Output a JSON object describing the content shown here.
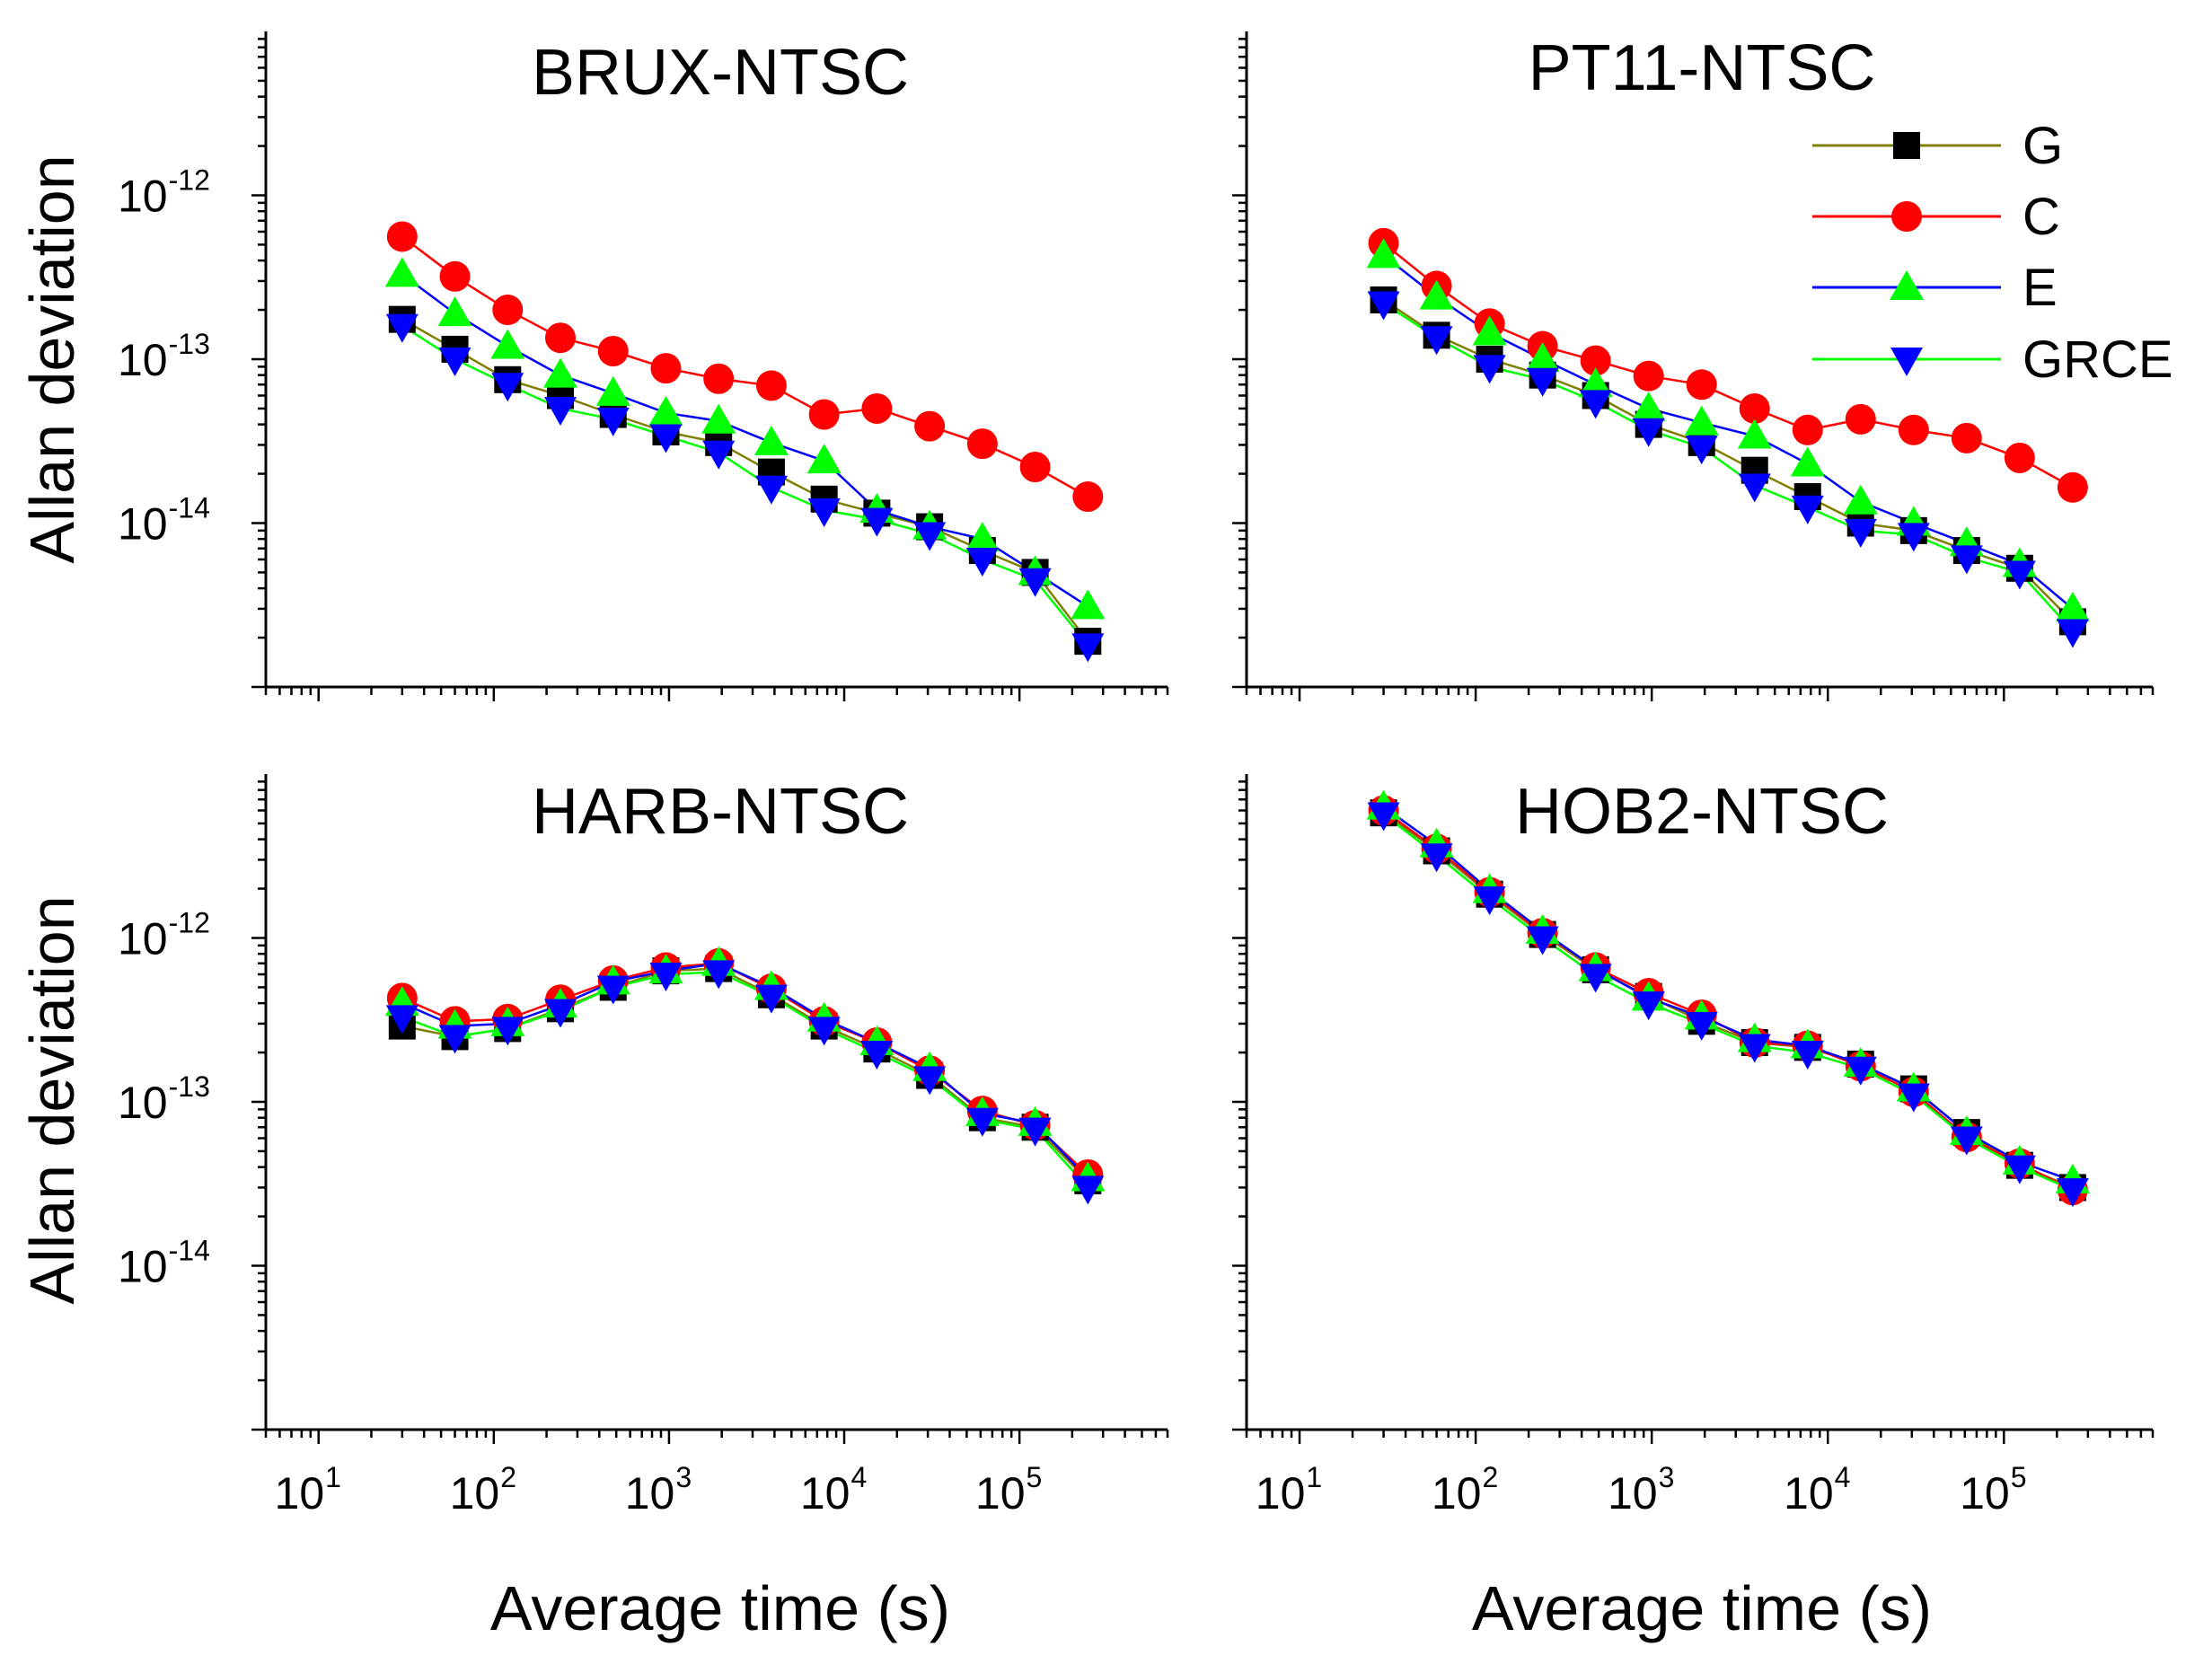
{
  "chart_data": {
    "type": "line",
    "scale": {
      "x": "log",
      "y": "log"
    },
    "xlim": [
      5,
      700000
    ],
    "ylim": [
      1e-15,
      1e-11
    ],
    "xlabel": "Average time (s)",
    "ylabel": "Allan deviation",
    "x_ticks": [
      {
        "base": "10",
        "exp": "1"
      },
      {
        "base": "10",
        "exp": "2"
      },
      {
        "base": "10",
        "exp": "3"
      },
      {
        "base": "10",
        "exp": "4"
      },
      {
        "base": "10",
        "exp": "5"
      }
    ],
    "y_ticks": [
      {
        "base": "10",
        "exp": "-12"
      },
      {
        "base": "10",
        "exp": "-13"
      },
      {
        "base": "10",
        "exp": "-14"
      }
    ],
    "colors": {
      "G": "#000000",
      "C": "#ff0000",
      "E": "#00ff00",
      "GRCE": "#0000ff"
    },
    "legend": [
      "G",
      "C",
      "E",
      "GRCE"
    ],
    "x": [
      30,
      60,
      120,
      240,
      480,
      960,
      1920,
      3840,
      7680,
      15360,
      30720,
      61440,
      122880,
      245760
    ],
    "panels": [
      {
        "title": "BRUX-NTSC",
        "series": [
          {
            "name": "G",
            "line_color": "#808000",
            "values": [
              1.75e-13,
              1.15e-13,
              7.5e-14,
              6e-14,
              4.6e-14,
              3.6e-14,
              3.1e-14,
              2.05e-14,
              1.4e-14,
              1.15e-14,
              9.5e-15,
              6.8e-15,
              5e-15,
              1.9e-15
            ]
          },
          {
            "name": "C",
            "line_color": "#ff0000",
            "values": [
              5.6e-13,
              3.2e-13,
              2e-13,
              1.35e-13,
              1.12e-13,
              8.8e-14,
              7.6e-14,
              6.9e-14,
              4.6e-14,
              5e-14,
              3.9e-14,
              3.05e-14,
              2.2e-14,
              1.45e-14
            ]
          },
          {
            "name": "E",
            "line_color": "#0000ff",
            "values": [
              3.3e-13,
              1.9e-13,
              1.2e-13,
              8e-14,
              6.2e-14,
              4.7e-14,
              4.2e-14,
              3.1e-14,
              2.4e-14,
              1.2e-14,
              9.5e-15,
              8e-15,
              5e-15,
              3.1e-15
            ]
          },
          {
            "name": "GRCE",
            "line_color": "#00ff00",
            "values": [
              1.6e-13,
              1e-13,
              7e-14,
              5e-14,
              4.3e-14,
              3.4e-14,
              2.7e-14,
              1.65e-14,
              1.2e-14,
              1.05e-14,
              8.6e-15,
              6e-15,
              4.5e-15,
              1.8e-15
            ]
          }
        ]
      },
      {
        "title": "PT11-NTSC",
        "series": [
          {
            "name": "G",
            "line_color": "#808000",
            "values": [
              2.3e-13,
              1.4e-13,
              1e-13,
              8e-14,
              6e-14,
              4e-14,
              3.1e-14,
              2.1e-14,
              1.45e-14,
              1e-14,
              9e-15,
              6.8e-15,
              5.3e-15,
              2.5e-15
            ]
          },
          {
            "name": "C",
            "line_color": "#ff0000",
            "values": [
              5.1e-13,
              2.8e-13,
              1.65e-13,
              1.2e-13,
              9.8e-14,
              7.9e-14,
              7e-14,
              5e-14,
              3.7e-14,
              4.3e-14,
              3.7e-14,
              3.3e-14,
              2.5e-14,
              1.65e-14
            ]
          },
          {
            "name": "E",
            "line_color": "#0000ff",
            "values": [
              4.3e-13,
              2.4e-13,
              1.45e-13,
              1e-13,
              7e-14,
              5e-14,
              4.1e-14,
              3.4e-14,
              2.3e-14,
              1.35e-14,
              1e-14,
              7.5e-15,
              5.6e-15,
              3e-15
            ]
          },
          {
            "name": "GRCE",
            "line_color": "#00ff00",
            "values": [
              2.2e-13,
              1.35e-13,
              9e-14,
              7.5e-14,
              5.5e-14,
              3.7e-14,
              2.9e-14,
              1.7e-14,
              1.25e-14,
              9e-15,
              8.5e-15,
              6.2e-15,
              5e-15,
              2.2e-15
            ]
          }
        ]
      },
      {
        "title": "HARB-NTSC",
        "series": [
          {
            "name": "G",
            "line_color": "#808000",
            "values": [
              2.9e-13,
              2.5e-13,
              2.8e-13,
              3.7e-13,
              5e-13,
              6.3e-13,
              6.5e-13,
              4.5e-13,
              2.9e-13,
              2.1e-13,
              1.45e-13,
              8e-14,
              7e-14,
              3.3e-14
            ]
          },
          {
            "name": "C",
            "line_color": "#ff0000",
            "values": [
              4.3e-13,
              3.1e-13,
              3.2e-13,
              4.2e-13,
              5.5e-13,
              6.6e-13,
              7e-13,
              4.9e-13,
              3.1e-13,
              2.3e-13,
              1.55e-13,
              8.8e-14,
              7.2e-14,
              3.6e-14
            ]
          },
          {
            "name": "E",
            "line_color": "#0000ff",
            "values": [
              4e-13,
              2.9e-13,
              3e-13,
              3.9e-13,
              5.4e-13,
              6.3e-13,
              7e-13,
              5e-13,
              3.2e-13,
              2.3e-13,
              1.6e-13,
              8.5e-14,
              7.4e-14,
              3.4e-14
            ]
          },
          {
            "name": "GRCE",
            "line_color": "#00ff00",
            "values": [
              3.3e-13,
              2.5e-13,
              2.8e-13,
              3.6e-13,
              5e-13,
              6e-13,
              6.2e-13,
              4.4e-13,
              2.8e-13,
              2e-13,
              1.4e-13,
              7.8e-14,
              6.8e-14,
              3e-14
            ]
          }
        ]
      },
      {
        "title": "HOB2-NTSC",
        "series": [
          {
            "name": "G",
            "line_color": "#808000",
            "values": [
              5.8e-12,
              3.4e-12,
              1.85e-12,
              1.05e-12,
              6.4e-13,
              4.4e-13,
              3.1e-13,
              2.3e-13,
              2.15e-13,
              1.7e-13,
              1.2e-13,
              6.5e-14,
              4.1e-14,
              3e-14
            ]
          },
          {
            "name": "C",
            "line_color": "#ff0000",
            "values": [
              6e-12,
              3.5e-12,
              1.9e-12,
              1.07e-12,
              6.6e-13,
              4.6e-13,
              3.4e-13,
              2.3e-13,
              2.2e-13,
              1.65e-13,
              1.15e-13,
              6.1e-14,
              4.2e-14,
              2.9e-14
            ]
          },
          {
            "name": "E",
            "line_color": "#0000ff",
            "values": [
              6.3e-12,
              3.7e-12,
              1.95e-12,
              1.1e-12,
              6.5e-13,
              4.3e-13,
              3.3e-13,
              2.4e-13,
              2.2e-13,
              1.7e-13,
              1.2e-13,
              6.5e-14,
              4.3e-14,
              3.3e-14
            ]
          },
          {
            "name": "GRCE",
            "line_color": "#00ff00",
            "values": [
              5.7e-12,
              3.2e-12,
              1.75e-12,
              1e-12,
              5.9e-13,
              4e-13,
              3e-13,
              2.2e-13,
              2e-13,
              1.6e-13,
              1.1e-13,
              6e-14,
              4e-14,
              2.9e-14
            ]
          }
        ]
      }
    ]
  }
}
